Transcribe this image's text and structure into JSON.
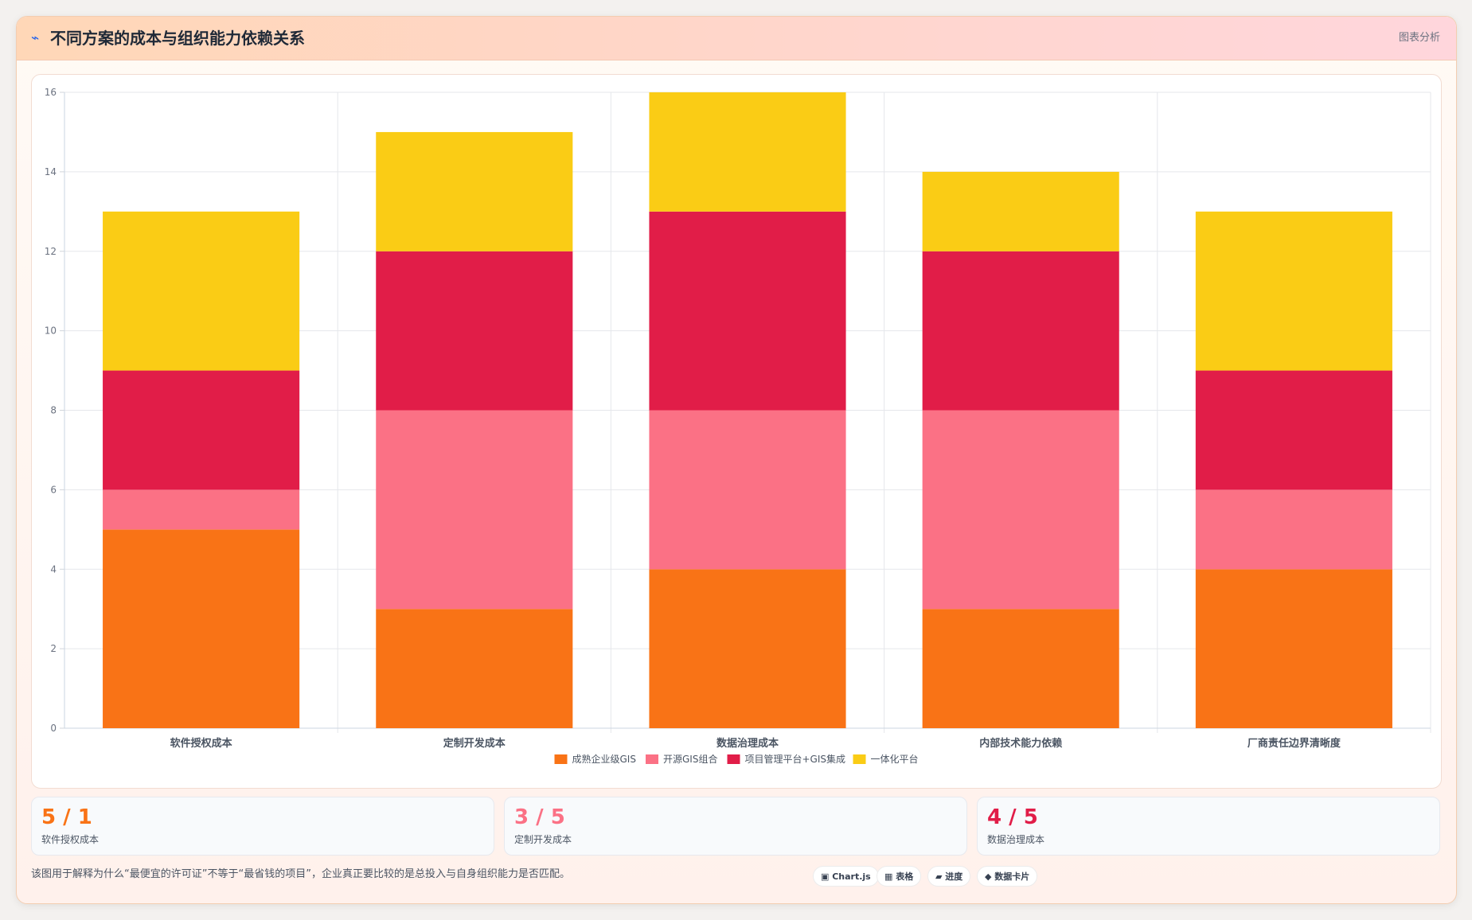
{
  "header": {
    "icon": "trend-icon",
    "title": "不同方案的成本与组织能力依赖关系",
    "action_label": "图表分析"
  },
  "chart_data": {
    "type": "bar",
    "stacked": true,
    "categories": [
      "软件授权成本",
      "定制开发成本",
      "数据治理成本",
      "内部技术能力依赖",
      "厂商责任边界清晰度"
    ],
    "series": [
      {
        "name": "成熟企业级GIS",
        "color": "#f97316",
        "values": [
          5,
          3,
          4,
          3,
          4
        ]
      },
      {
        "name": "开源GIS组合",
        "color": "#fb7185",
        "values": [
          1,
          5,
          4,
          5,
          2
        ]
      },
      {
        "name": "项目管理平台+GIS集成",
        "color": "#e11d48",
        "values": [
          3,
          4,
          5,
          4,
          3
        ]
      },
      {
        "name": "一体化平台",
        "color": "#facc15",
        "values": [
          4,
          3,
          3,
          2,
          4
        ]
      }
    ],
    "ylim": [
      0,
      16
    ],
    "yticks": [
      0,
      2,
      4,
      6,
      8,
      10,
      12,
      14,
      16
    ],
    "grid": true,
    "legend": "bottom"
  },
  "stats": [
    {
      "value": "5 / 1",
      "label": "软件授权成本",
      "color": "#f97316"
    },
    {
      "value": "3 / 5",
      "label": "定制开发成本",
      "color": "#fb7185"
    },
    {
      "value": "4 / 5",
      "label": "数据治理成本",
      "color": "#e11d48"
    }
  ],
  "footer": {
    "note": "该图用于解释为什么“最便宜的许可证”不等于“最省钱的项目”，企业真正要比较的是总投入与自身组织能力是否匹配。",
    "tags": [
      {
        "label": "▣ Chart.js"
      },
      {
        "label": "▦ 表格"
      },
      {
        "label": "▰ 进度"
      },
      {
        "label": "◆ 数据卡片"
      }
    ]
  }
}
